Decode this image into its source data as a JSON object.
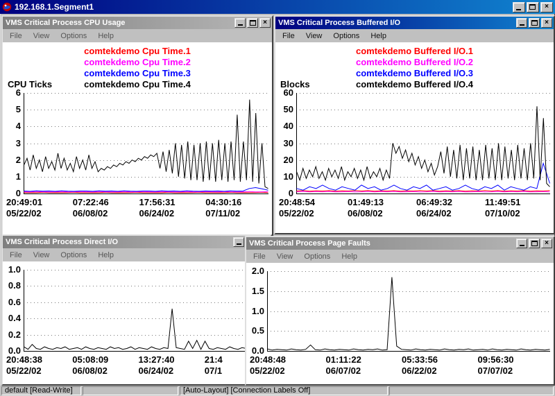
{
  "app": {
    "title": "192.168.1.Segment1"
  },
  "glyphs": {
    "close": "×"
  },
  "menu": [
    "File",
    "View",
    "Options",
    "Help"
  ],
  "statusbar": {
    "left": "default [Read-Write]",
    "center": "[Auto-Layout] [Connection Labels Off]"
  },
  "windows": [
    {
      "title": "VMS Critical Process CPU Usage",
      "active": false,
      "ylabel": "CPU Ticks",
      "legend": [
        {
          "label": "comtekdemo Cpu Time.1",
          "color": "#ff0000"
        },
        {
          "label": "comtekdemo Cpu Time.2",
          "color": "#ff00ff"
        },
        {
          "label": "comtekdemo Cpu Time.3",
          "color": "#0000ff"
        },
        {
          "label": "comtekdemo Cpu Time.4",
          "color": "#000000"
        }
      ],
      "chart": {
        "type": "line",
        "ymax": 6,
        "yticks": [
          "6",
          "5",
          "4",
          "3",
          "2",
          "1",
          "0"
        ],
        "xticks": [
          {
            "time": "20:49:01",
            "date": "05/22/02"
          },
          {
            "time": "07:22:46",
            "date": "06/08/02"
          },
          {
            "time": "17:56:31",
            "date": "06/24/02"
          },
          {
            "time": "04:30:16",
            "date": "07/11/02"
          }
        ],
        "series": [
          {
            "name": "comtekdemo Cpu Time.1",
            "color": "#ff0000",
            "values": [
              0.05,
              0.06,
              0.05,
              0.07,
              0.05,
              0.06,
              0.05,
              0.06,
              0.07,
              0.05,
              0.05,
              0.06,
              0.05,
              0.07,
              0.05,
              0.06,
              0.05,
              0.06,
              0.07,
              0.05,
              0.05,
              0.06,
              0.05,
              0.07,
              0.05,
              0.06,
              0.05,
              0.06,
              0.07,
              0.05,
              0.05,
              0.06,
              0.05,
              0.07,
              0.05,
              0.06,
              0.05,
              0.06,
              0.07,
              0.05
            ]
          },
          {
            "name": "comtekdemo Cpu Time.2",
            "color": "#ff00ff",
            "values": [
              0.1,
              0.09,
              0.11,
              0.1,
              0.09,
              0.1,
              0.11,
              0.09,
              0.1,
              0.11,
              0.1,
              0.09,
              0.11,
              0.1,
              0.09,
              0.1,
              0.11,
              0.09,
              0.1,
              0.11,
              0.1,
              0.09,
              0.11,
              0.1,
              0.09,
              0.1,
              0.11,
              0.09,
              0.1,
              0.11,
              0.1,
              0.09,
              0.11,
              0.1,
              0.09,
              0.1,
              0.11,
              0.09,
              0.1,
              0.11
            ]
          },
          {
            "name": "comtekdemo Cpu Time.3",
            "color": "#0000ff",
            "values": [
              0.15,
              0.13,
              0.16,
              0.14,
              0.15,
              0.13,
              0.16,
              0.14,
              0.13,
              0.15,
              0.15,
              0.13,
              0.16,
              0.14,
              0.15,
              0.13,
              0.16,
              0.14,
              0.13,
              0.15,
              0.15,
              0.13,
              0.16,
              0.14,
              0.15,
              0.13,
              0.16,
              0.14,
              0.13,
              0.15,
              0.14,
              0.15,
              0.13,
              0.16,
              0.14,
              0.15,
              0.3,
              0.35,
              0.28,
              0.2
            ]
          },
          {
            "name": "comtekdemo Cpu Time.4",
            "color": "#000000",
            "values": [
              1.7,
              2.1,
              1.4,
              2.3,
              1.5,
              2.0,
              1.3,
              2.2,
              1.5,
              1.9,
              1.4,
              2.4,
              1.5,
              2.1,
              1.4,
              1.8,
              1.3,
              2.2,
              1.5,
              2.0,
              1.4,
              2.3,
              1.5,
              1.9,
              1.3,
              1.5,
              1.4,
              1.6,
              1.5,
              1.7,
              1.6,
              1.8,
              1.7,
              1.9,
              1.8,
              2.0,
              1.9,
              2.1,
              2.0,
              2.2,
              2.1,
              2.3,
              2.2,
              2.4,
              1.5,
              2.5,
              1.3,
              2.6,
              1.2,
              3.0,
              1.0,
              2.9,
              0.9,
              3.1,
              0.8,
              2.9,
              0.8,
              3.0,
              0.7,
              3.1,
              0.8,
              3.0,
              0.7,
              3.2,
              0.8,
              3.0,
              0.7,
              3.1,
              0.8,
              4.7,
              0.7,
              3.1,
              0.8,
              5.6,
              0.7,
              4.8,
              0.6,
              3.0,
              0.4,
              0.3
            ]
          }
        ]
      }
    },
    {
      "title": "VMS Critical Process Buffered I/O",
      "active": true,
      "ylabel": "Blocks",
      "legend": [
        {
          "label": "comtekdemo Buffered I/O.1",
          "color": "#ff0000"
        },
        {
          "label": "comtekdemo Buffered I/O.2",
          "color": "#ff00ff"
        },
        {
          "label": "comtekdemo Buffered I/O.3",
          "color": "#0000ff"
        },
        {
          "label": "comtekdemo Buffered I/O.4",
          "color": "#000000"
        }
      ],
      "chart": {
        "type": "line",
        "ymax": 60,
        "yticks": [
          "60",
          "50",
          "40",
          "30",
          "20",
          "10",
          "0"
        ],
        "xticks": [
          {
            "time": "20:48:54",
            "date": "05/22/02"
          },
          {
            "time": "01:49:13",
            "date": "06/08/02"
          },
          {
            "time": "06:49:32",
            "date": "06/24/02"
          },
          {
            "time": "11:49:51",
            "date": "07/10/02"
          }
        ],
        "series": [
          {
            "name": "comtekdemo Buffered I/O.1",
            "color": "#ff0000",
            "values": [
              1.5,
              1.8,
              1.4,
              1.6,
              1.5,
              1.7,
              1.4,
              1.6,
              1.5,
              1.8,
              1.5,
              1.8,
              1.4,
              1.6,
              1.5,
              1.7,
              1.4,
              1.6,
              1.5,
              1.8,
              1.5,
              1.8,
              1.4,
              1.6,
              1.5,
              1.7,
              1.4,
              1.6,
              1.5,
              1.8,
              1.5,
              1.8,
              1.4,
              1.6,
              1.5,
              1.7,
              1.4,
              1.6,
              1.5,
              1.8
            ]
          },
          {
            "name": "comtekdemo Buffered I/O.2",
            "color": "#ff00ff",
            "values": [
              1.0,
              1.2,
              0.9,
              1.1,
              1.0,
              1.2,
              0.9,
              1.0,
              1.1,
              0.9,
              1.0,
              1.2,
              0.9,
              1.1,
              1.0,
              1.2,
              0.9,
              1.0,
              1.1,
              0.9,
              1.0,
              1.2,
              0.9,
              1.1,
              1.0,
              1.2,
              0.9,
              1.0,
              1.1,
              0.9,
              1.0,
              1.2,
              0.9,
              1.1,
              1.0,
              1.2,
              0.9,
              1.0,
              1.1,
              0.9
            ]
          },
          {
            "name": "comtekdemo Buffered I/O.3",
            "color": "#0000ff",
            "values": [
              3,
              2,
              4,
              3,
              5,
              3,
              2,
              4,
              3,
              2,
              5,
              3,
              4,
              2,
              3,
              5,
              3,
              2,
              4,
              3,
              5,
              2,
              3,
              4,
              2,
              3,
              5,
              3,
              2,
              4,
              3,
              5,
              2,
              4,
              3,
              2,
              4,
              3,
              18,
              6
            ]
          },
          {
            "name": "comtekdemo Buffered I/O.4",
            "color": "#000000",
            "values": [
              13,
              8,
              15,
              9,
              14,
              10,
              16,
              9,
              13,
              8,
              15,
              10,
              14,
              9,
              16,
              8,
              13,
              10,
              15,
              9,
              14,
              8,
              16,
              9,
              13,
              10,
              15,
              8,
              14,
              9,
              30,
              24,
              28,
              21,
              26,
              19,
              24,
              17,
              22,
              15,
              20,
              13,
              18,
              11,
              16,
              25,
              12,
              28,
              10,
              26,
              9,
              29,
              8,
              27,
              9,
              28,
              8,
              26,
              8,
              29,
              9,
              27,
              8,
              30,
              8,
              28,
              9,
              26,
              8,
              29,
              9,
              27,
              8,
              30,
              9,
              52,
              8,
              45,
              6,
              4
            ]
          }
        ]
      }
    },
    {
      "title": "VMS Critical Process Direct I/O",
      "active": false,
      "ylabel": "",
      "chart": {
        "type": "line",
        "ymax": 1.0,
        "yticks": [
          "1.0",
          "0.8",
          "0.6",
          "0.4",
          "0.2",
          "0.0"
        ],
        "xticks": [
          {
            "time": "20:48:38",
            "date": "05/22/02"
          },
          {
            "time": "05:08:09",
            "date": "06/08/02"
          },
          {
            "time": "13:27:40",
            "date": "06/24/02"
          },
          {
            "time": "21:4",
            "date": "07/1"
          }
        ],
        "series": [
          {
            "name": "Direct I/O",
            "color": "#000000",
            "values": [
              0.05,
              0.02,
              0.08,
              0.03,
              0.02,
              0.05,
              0.03,
              0.02,
              0.04,
              0.03,
              0.05,
              0.02,
              0.03,
              0.04,
              0.02,
              0.05,
              0.03,
              0.02,
              0.04,
              0.03,
              0.02,
              0.05,
              0.03,
              0.04,
              0.02,
              0.03,
              0.05,
              0.02,
              0.04,
              0.03,
              0.02,
              0.05,
              0.03,
              0.02,
              0.04,
              0.03,
              0.52,
              0.04,
              0.03,
              0.02,
              0.12,
              0.03,
              0.13,
              0.02,
              0.12,
              0.03,
              0.02,
              0.04,
              0.03,
              0.02,
              0.05,
              0.03,
              0.02,
              0.04,
              0.03,
              0.05,
              0.02,
              0.04,
              0.03,
              0.02
            ]
          }
        ]
      }
    },
    {
      "title": "VMS Critical Process Page Faults",
      "active": false,
      "ylabel": "",
      "chart": {
        "type": "line",
        "ymax": 2.0,
        "yticks": [
          "2.0",
          "1.5",
          "1.0",
          "0.5",
          "0.0"
        ],
        "xticks": [
          {
            "time": "20:48:48",
            "date": "05/22/02"
          },
          {
            "time": "01:11:22",
            "date": "06/07/02"
          },
          {
            "time": "05:33:56",
            "date": "06/22/02"
          },
          {
            "time": "09:56:30",
            "date": "07/07/02"
          }
        ],
        "series": [
          {
            "name": "Page Faults",
            "color": "#000000",
            "values": [
              0.05,
              0.02,
              0.04,
              0.03,
              0.02,
              0.05,
              0.03,
              0.02,
              0.04,
              0.15,
              0.03,
              0.02,
              0.05,
              0.03,
              0.02,
              0.04,
              0.03,
              0.02,
              0.05,
              0.03,
              0.02,
              0.04,
              0.03,
              0.05,
              0.02,
              0.03,
              1.85,
              0.12,
              0.04,
              0.03,
              0.02,
              0.05,
              0.03,
              0.02,
              0.04,
              0.03,
              0.02,
              0.05,
              0.03,
              0.02,
              0.04,
              0.03,
              0.05,
              0.02,
              0.03,
              0.04,
              0.02,
              0.05,
              0.03,
              0.02,
              0.04,
              0.03,
              0.02,
              0.05,
              0.03,
              0.02,
              0.04,
              0.03,
              0.02,
              0.04
            ]
          }
        ]
      }
    }
  ]
}
